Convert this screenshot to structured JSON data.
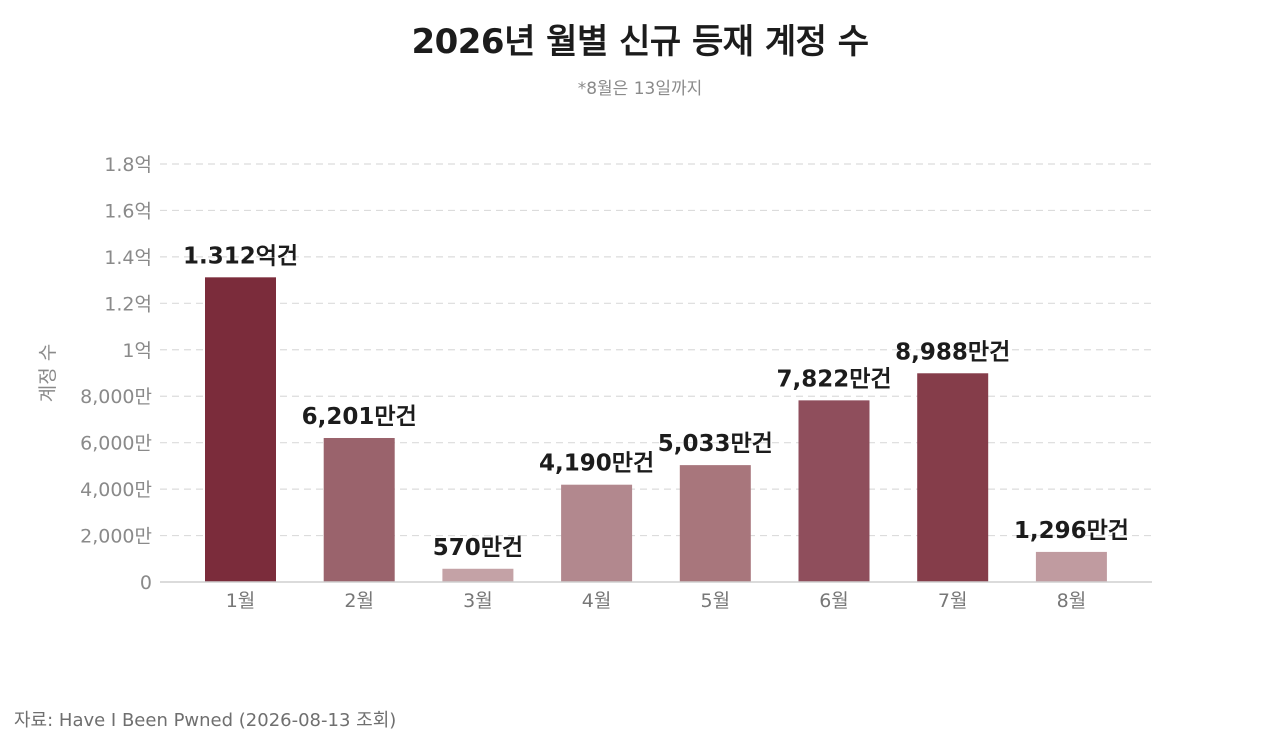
{
  "chart_data": {
    "type": "bar",
    "title": "2026년 월별 신규 등재 계정 수",
    "subtitle": "*8월은 13일까지",
    "ylabel": "계정 수",
    "xlabel": "",
    "ylim": [
      0,
      180000000
    ],
    "yticks": [
      {
        "value": 0,
        "label": "0"
      },
      {
        "value": 20000000,
        "label": "2,000만"
      },
      {
        "value": 40000000,
        "label": "4,000만"
      },
      {
        "value": 60000000,
        "label": "6,000만"
      },
      {
        "value": 80000000,
        "label": "8,000만"
      },
      {
        "value": 100000000,
        "label": "1억"
      },
      {
        "value": 120000000,
        "label": "1.2억"
      },
      {
        "value": 140000000,
        "label": "1.4억"
      },
      {
        "value": 160000000,
        "label": "1.6억"
      },
      {
        "value": 180000000,
        "label": "1.8억"
      }
    ],
    "grid": true,
    "legend": "none",
    "categories": [
      "1월",
      "2월",
      "3월",
      "4월",
      "5월",
      "6월",
      "7월",
      "8월"
    ],
    "values": [
      131200000,
      62010000,
      5700000,
      41900000,
      50330000,
      78220000,
      89880000,
      12960000
    ],
    "data_labels": [
      "1.312억건",
      "6,201만건",
      "570만건",
      "4,190만건",
      "5,033만건",
      "7,822만건",
      "8,988만건",
      "1,296만건"
    ],
    "colors": [
      "#7b2c3b",
      "#9a636c",
      "#c4a2a6",
      "#b2888e",
      "#a8767c",
      "#8f4e5c",
      "#853d4a",
      "#c09ba0"
    ]
  },
  "source": "자료: Have I Been Pwned (2026-08-13 조회)"
}
